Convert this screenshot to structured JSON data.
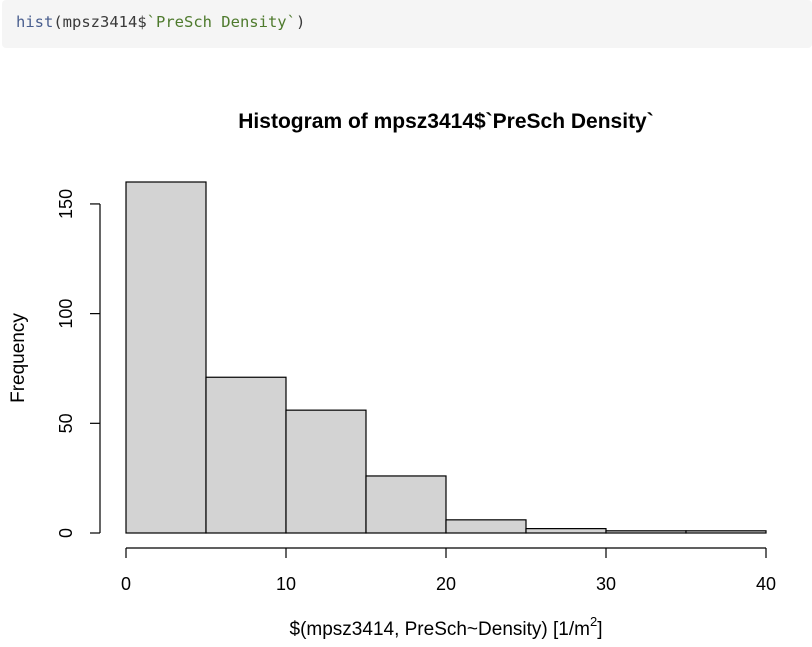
{
  "code": {
    "fn": "hist",
    "open": "(mpsz3414$",
    "arg": "`PreSch Density`",
    "close": ")"
  },
  "chart_data": {
    "type": "bar",
    "title": "Histogram of mpsz3414$`PreSch Density`",
    "xlabel_main": "$(mpsz3414, PreSch~Density) [1/m",
    "xlabel_sup": "2",
    "xlabel_end": "]",
    "ylabel": "Frequency",
    "bins": [
      {
        "from": 0,
        "to": 5,
        "count": 160
      },
      {
        "from": 5,
        "to": 10,
        "count": 71
      },
      {
        "from": 10,
        "to": 15,
        "count": 56
      },
      {
        "from": 15,
        "to": 20,
        "count": 26
      },
      {
        "from": 20,
        "to": 25,
        "count": 6
      },
      {
        "from": 25,
        "to": 30,
        "count": 2
      },
      {
        "from": 30,
        "to": 35,
        "count": 1
      },
      {
        "from": 35,
        "to": 40,
        "count": 1
      }
    ],
    "xlim": [
      0,
      40
    ],
    "ylim": [
      0,
      160
    ],
    "x_ticks": [
      0,
      10,
      20,
      30,
      40
    ],
    "y_ticks": [
      0,
      50,
      100,
      150
    ],
    "x_tick_labels": [
      "0",
      "10",
      "20",
      "30",
      "40"
    ],
    "y_tick_labels": [
      "0",
      "50",
      "100",
      "150"
    ],
    "bar_fill": "#d3d3d3",
    "bar_stroke": "#000000",
    "grid": false,
    "legend": "none"
  }
}
